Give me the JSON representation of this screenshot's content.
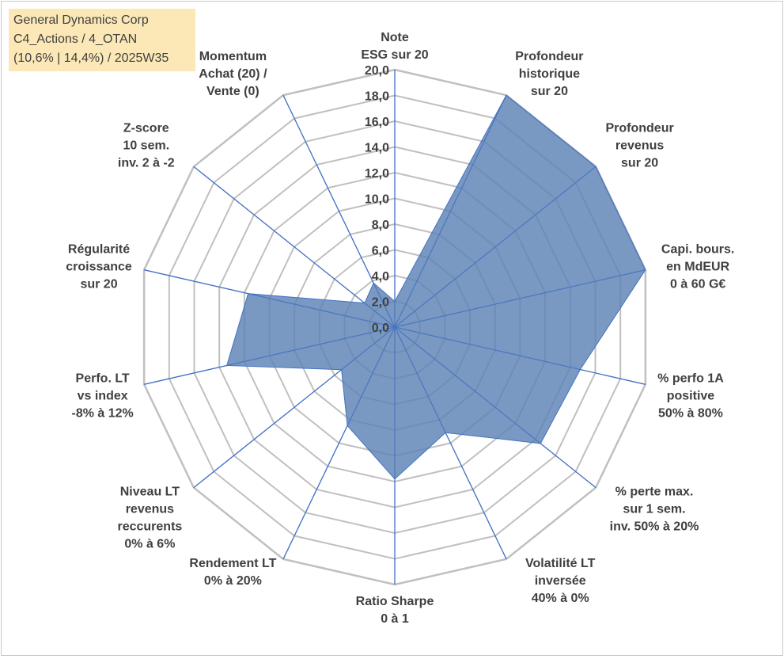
{
  "title_box": {
    "line1": "General Dynamics Corp",
    "line2": "C4_Actions / 4_OTAN",
    "line3": "(10,6% | 14,4%) / 2025W35"
  },
  "colors": {
    "fill": "#5b83b6",
    "stroke": "#4472c4",
    "grid": "#c0c0c0",
    "text": "#404040",
    "title_bg": "#fbe8b6"
  },
  "chart_data": {
    "type": "radar",
    "rmin": 0,
    "rmax": 20,
    "grid": true,
    "tick_labels": [
      "0,0",
      "2,0",
      "4,0",
      "6,0",
      "8,0",
      "10,0",
      "12,0",
      "14,0",
      "16,0",
      "18,0",
      "20,0"
    ],
    "categories": [
      [
        "Note",
        "ESG sur 20"
      ],
      [
        "Profondeur",
        "historique",
        "sur 20"
      ],
      [
        "Profondeur",
        "revenus",
        "sur 20"
      ],
      [
        "Capi. bours.",
        "en MdEUR",
        "0 à 60 G€"
      ],
      [
        "% perfo 1A",
        "positive",
        "50% à 80%"
      ],
      [
        "% perte max.",
        "sur 1 sem.",
        "inv. 50% à 20%"
      ],
      [
        "Volatilité LT",
        "inversée",
        "40% à 0%"
      ],
      [
        "Ratio Sharpe",
        "0 à 1"
      ],
      [
        "Rendement LT",
        "0% à 20%"
      ],
      [
        "Niveau LT",
        "revenus",
        "reccurents",
        "0% à 6%"
      ],
      [
        "Perfo. LT",
        "vs index",
        "-8% à 12%"
      ],
      [
        "Régularité",
        "croissance",
        "sur 20"
      ],
      [
        "Z-score",
        "10 sem.",
        "inv. 2 à -2"
      ],
      [
        "Momentum",
        "Achat (20) /",
        "Vente (0)"
      ]
    ],
    "values": [
      2.0,
      20.0,
      20.0,
      20.0,
      14.8,
      14.5,
      9.1,
      11.8,
      8.5,
      5.3,
      13.4,
      11.7,
      3.0,
      3.8
    ]
  }
}
